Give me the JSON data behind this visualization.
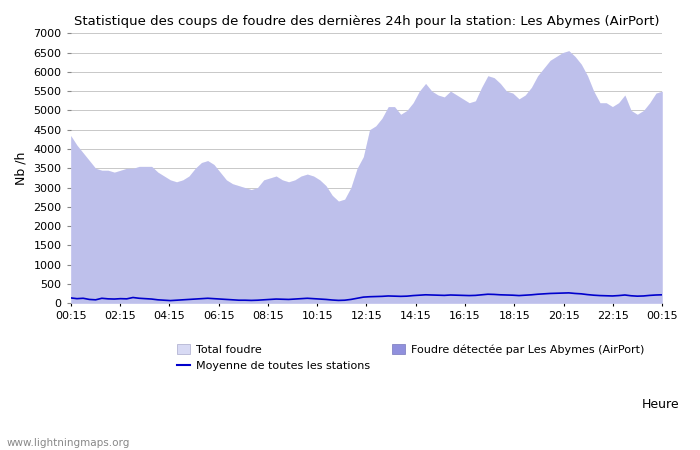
{
  "title": "Statistique des coups de foudre des dernières 24h pour la station: Les Abymes (AirPort)",
  "xlabel": "Heure",
  "ylabel": "Nb /h",
  "watermark": "www.lightningmaps.org",
  "ylim": [
    0,
    7000
  ],
  "yticks": [
    0,
    500,
    1000,
    1500,
    2000,
    2500,
    3000,
    3500,
    4000,
    4500,
    5000,
    5500,
    6000,
    6500,
    7000
  ],
  "xtick_labels": [
    "00:15",
    "02:15",
    "04:15",
    "06:15",
    "08:15",
    "10:15",
    "12:15",
    "14:15",
    "16:15",
    "18:15",
    "20:15",
    "22:15",
    "00:15"
  ],
  "bg_color": "#ffffff",
  "plot_bg_color": "#ffffff",
  "grid_color": "#c8c8c8",
  "total_foudre_color": "#d8daf4",
  "total_foudre_edge": "#c0c4ee",
  "foudre_detectee_color": "#9090dd",
  "moyenne_color": "#0000cc",
  "legend_total": "Total foudre",
  "legend_detectee": "Foudre détectée par Les Abymes (AirPort)",
  "legend_moyenne": "Moyenne de toutes les stations",
  "x_values": [
    0,
    1,
    2,
    3,
    4,
    5,
    6,
    7,
    8,
    9,
    10,
    11,
    12,
    13,
    14,
    15,
    16,
    17,
    18,
    19,
    20,
    21,
    22,
    23,
    24,
    25,
    26,
    27,
    28,
    29,
    30,
    31,
    32,
    33,
    34,
    35,
    36,
    37,
    38,
    39,
    40,
    41,
    42,
    43,
    44,
    45,
    46,
    47,
    48,
    49,
    50,
    51,
    52,
    53,
    54,
    55,
    56,
    57,
    58,
    59,
    60,
    61,
    62,
    63,
    64,
    65,
    66,
    67,
    68,
    69,
    70,
    71,
    72,
    73,
    74,
    75,
    76,
    77,
    78,
    79,
    80,
    81,
    82,
    83,
    84,
    85,
    86,
    87,
    88,
    89,
    90,
    91,
    92,
    93,
    94,
    95
  ],
  "total_values": [
    4350,
    4100,
    3900,
    3700,
    3500,
    3450,
    3450,
    3400,
    3450,
    3500,
    3500,
    3550,
    3550,
    3550,
    3400,
    3300,
    3200,
    3150,
    3200,
    3300,
    3500,
    3650,
    3700,
    3600,
    3400,
    3200,
    3100,
    3050,
    3000,
    2950,
    3000,
    3200,
    3250,
    3300,
    3200,
    3150,
    3200,
    3300,
    3350,
    3300,
    3200,
    3050,
    2800,
    2650,
    2700,
    3000,
    3500,
    3800,
    4500,
    4600,
    4800,
    5100,
    5100,
    4900,
    5000,
    5200,
    5500,
    5700,
    5500,
    5400,
    5350,
    5500,
    5400,
    5300,
    5200,
    5250,
    5600,
    5900,
    5850,
    5700,
    5500,
    5450,
    5300,
    5400,
    5600,
    5900,
    6100,
    6300,
    6400,
    6500,
    6550,
    6400,
    6200,
    5900,
    5500,
    5200,
    5200,
    5100,
    5200,
    5400,
    5000,
    4900,
    5000,
    5200,
    5450,
    5500
  ],
  "detectee_values": [
    4350,
    4100,
    3900,
    3700,
    3500,
    3450,
    3450,
    3400,
    3450,
    3500,
    3500,
    3550,
    3550,
    3550,
    3400,
    3300,
    3200,
    3150,
    3200,
    3300,
    3500,
    3650,
    3700,
    3600,
    3400,
    3200,
    3100,
    3050,
    3000,
    2950,
    3000,
    3200,
    3250,
    3300,
    3200,
    3150,
    3200,
    3300,
    3350,
    3300,
    3200,
    3050,
    2800,
    2650,
    2700,
    3000,
    3500,
    3800,
    4500,
    4600,
    4800,
    5100,
    5100,
    4900,
    5000,
    5200,
    5500,
    5700,
    5500,
    5400,
    5350,
    5500,
    5400,
    5300,
    5200,
    5250,
    5600,
    5900,
    5850,
    5700,
    5500,
    5450,
    5300,
    5400,
    5600,
    5900,
    6100,
    6300,
    6400,
    6500,
    6550,
    6400,
    6200,
    5900,
    5500,
    5200,
    5200,
    5100,
    5200,
    5400,
    5000,
    4900,
    5000,
    5200,
    5450,
    5500
  ],
  "moyenne_values": [
    140,
    120,
    130,
    100,
    90,
    130,
    115,
    110,
    120,
    115,
    150,
    130,
    120,
    110,
    90,
    80,
    70,
    80,
    90,
    100,
    110,
    120,
    130,
    120,
    110,
    100,
    90,
    80,
    80,
    75,
    80,
    90,
    100,
    110,
    105,
    100,
    110,
    120,
    130,
    120,
    110,
    100,
    85,
    75,
    80,
    100,
    130,
    160,
    170,
    175,
    180,
    190,
    185,
    180,
    185,
    200,
    210,
    220,
    215,
    210,
    205,
    215,
    210,
    205,
    200,
    205,
    220,
    235,
    230,
    220,
    215,
    210,
    200,
    210,
    220,
    235,
    245,
    255,
    260,
    265,
    270,
    255,
    245,
    225,
    210,
    200,
    195,
    190,
    200,
    215,
    195,
    185,
    190,
    205,
    215,
    220
  ]
}
